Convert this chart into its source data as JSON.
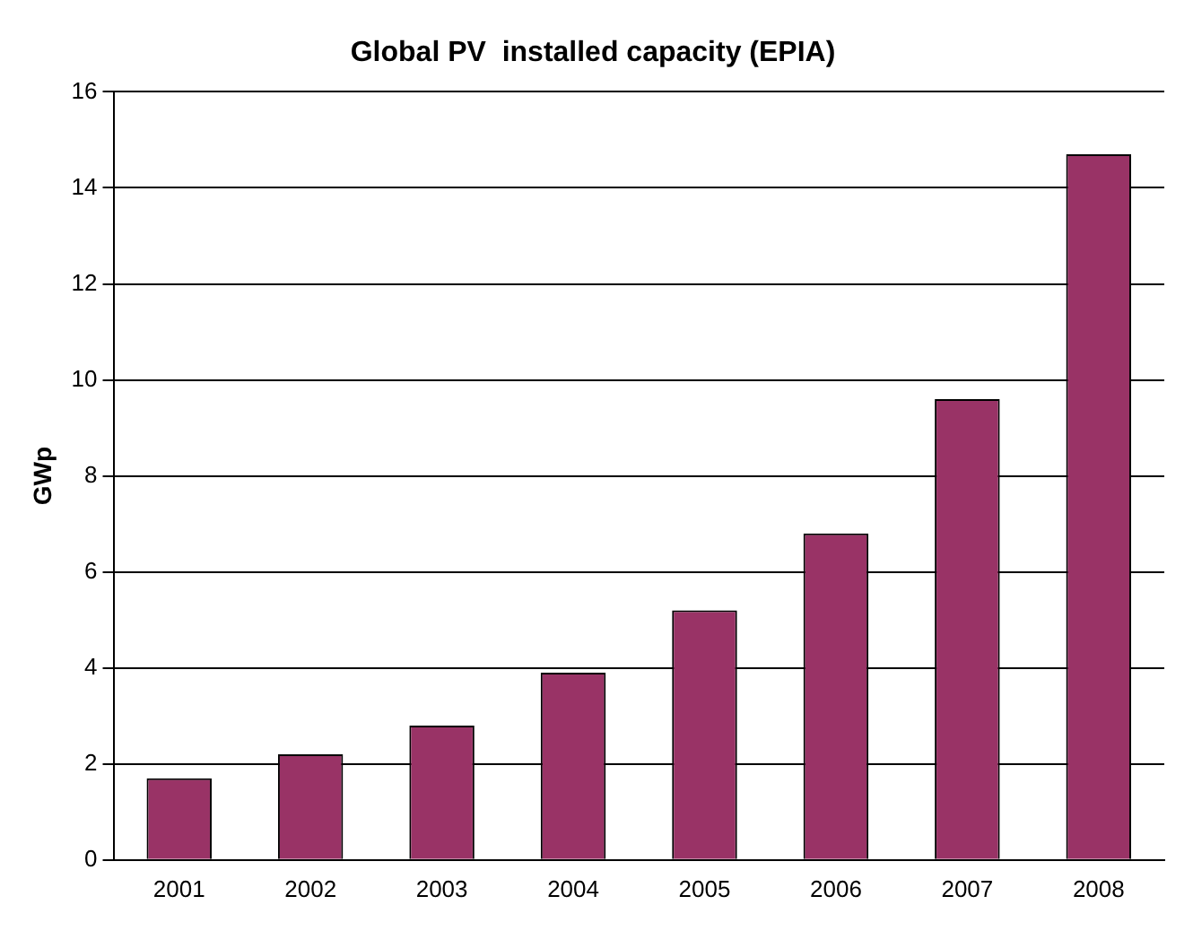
{
  "chart_data": {
    "type": "bar",
    "title": "Global PV  installed capacity (EPIA)",
    "ylabel": "GWp",
    "categories": [
      "2001",
      "2002",
      "2003",
      "2004",
      "2005",
      "2006",
      "2007",
      "2008"
    ],
    "values": [
      1.7,
      2.2,
      2.8,
      3.9,
      5.2,
      6.8,
      9.6,
      14.7
    ],
    "color": "#993366",
    "ylim": [
      0,
      16
    ],
    "yticks": [
      0,
      2,
      4,
      6,
      8,
      10,
      12,
      14,
      16
    ],
    "grid": "y",
    "legend": false
  }
}
